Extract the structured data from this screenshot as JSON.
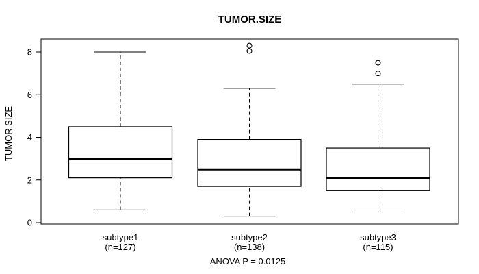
{
  "chart_data": {
    "type": "boxplot",
    "title": "TUMOR.SIZE",
    "ylabel": "TUMOR.SIZE",
    "xlabel": "",
    "ylim": [
      0,
      8
    ],
    "yticks": [
      0,
      2,
      4,
      6,
      8
    ],
    "grid": false,
    "legend": null,
    "annotation": "ANOVA P = 0.0125",
    "line_color": "#000000",
    "box_fill": "#ffffff",
    "groups": [
      {
        "label": "subtype1",
        "sublabel": "(n=127)",
        "n": 127,
        "whisker_low": 0.6,
        "q1": 2.1,
        "median": 3.0,
        "q3": 4.5,
        "whisker_high": 8.0,
        "outliers": []
      },
      {
        "label": "subtype2",
        "sublabel": "(n=138)",
        "n": 138,
        "whisker_low": 0.3,
        "q1": 1.7,
        "median": 2.5,
        "q3": 3.9,
        "whisker_high": 6.3,
        "outliers": [
          8.05,
          8.3
        ]
      },
      {
        "label": "subtype3",
        "sublabel": "(n=115)",
        "n": 115,
        "whisker_low": 0.5,
        "q1": 1.5,
        "median": 2.1,
        "q3": 3.5,
        "whisker_high": 6.5,
        "outliers": [
          7.0,
          7.5
        ]
      }
    ]
  }
}
